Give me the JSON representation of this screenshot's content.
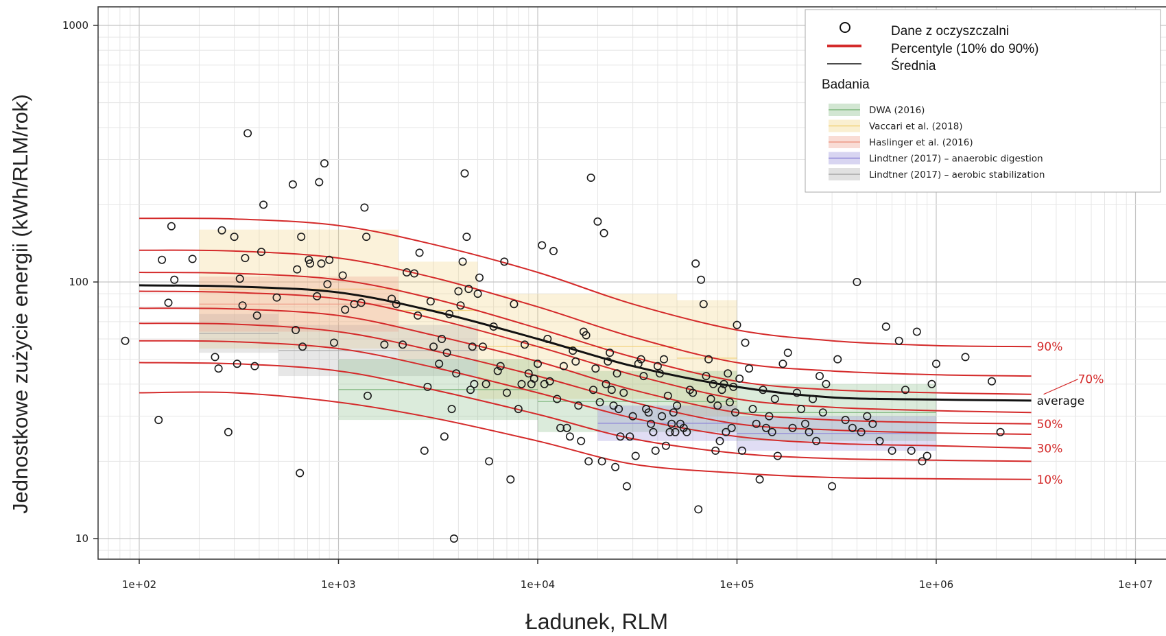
{
  "chart_data": {
    "type": "scatter",
    "xlabel": "Ładunek, RLM",
    "ylabel": "Jednostkowe zużycie energii (kWh/RLM/rok)",
    "xscale": "log",
    "yscale": "log",
    "xlim": [
      60,
      12000000
    ],
    "ylim": [
      8,
      1200
    ],
    "x_ticks": [
      100,
      1000,
      10000,
      100000,
      1000000,
      10000000
    ],
    "x_tick_labels": [
      "1e+02",
      "1e+03",
      "1e+04",
      "1e+05",
      "1e+06",
      "1e+07"
    ],
    "y_ticks": [
      10,
      100,
      1000
    ],
    "y_tick_labels": [
      "10",
      "100",
      "1000"
    ],
    "grid": true,
    "legend_position": "top-right",
    "legend": {
      "data_label": "Dane z oczyszczalni",
      "percentile_label": "Percentyle (10% do 90%)",
      "mean_label": "Średnia",
      "studies_title": "Badania",
      "studies": [
        {
          "name": "DWA (2016)",
          "color": "#7fb77e"
        },
        {
          "name": "Vaccari et al. (2018)",
          "color": "#f2d27a"
        },
        {
          "name": "Haslinger et al. (2016)",
          "color": "#ee9a86"
        },
        {
          "name": "Lindtner (2017) – anaerobic digestion",
          "color": "#8e86d8"
        },
        {
          "name": "Lindtner (2017) – aerobic stabilization",
          "color": "#a8a8a8"
        }
      ]
    },
    "curve_x": [
      100,
      300,
      1000,
      3000,
      10000,
      30000,
      100000,
      300000,
      1000000,
      3000000
    ],
    "percentile_series": [
      {
        "label": "10%",
        "values": [
          37,
          37,
          34,
          29.5,
          24,
          19.5,
          18,
          17.3,
          17.1,
          17
        ]
      },
      {
        "label": "",
        "values": [
          48.5,
          48,
          45,
          38,
          30.5,
          24.5,
          21.5,
          20.5,
          20.2,
          20
        ]
      },
      {
        "label": "30%",
        "values": [
          59,
          58.5,
          55,
          46.5,
          37,
          29.5,
          25,
          23.5,
          23,
          22.5
        ]
      },
      {
        "label": "",
        "values": [
          69,
          68.5,
          64,
          54,
          43,
          34,
          28,
          26.5,
          25.8,
          25.5
        ]
      },
      {
        "label": "50%",
        "values": [
          79,
          78.5,
          74,
          62,
          49,
          38,
          31,
          29,
          28.3,
          28
        ]
      },
      {
        "label": "",
        "values": [
          92,
          91,
          86,
          72,
          56,
          43.5,
          35,
          32.5,
          31.5,
          31
        ]
      },
      {
        "label": "70%",
        "values": [
          109,
          108,
          102,
          86,
          66,
          51,
          41,
          38,
          37,
          36.5
        ]
      },
      {
        "label": "",
        "values": [
          133,
          132,
          124,
          104,
          80,
          61,
          48.5,
          45,
          43.5,
          43
        ]
      },
      {
        "label": "90%",
        "values": [
          177,
          176,
          166,
          140,
          109,
          82,
          65,
          59,
          56.5,
          56
        ]
      }
    ],
    "average_series": {
      "label": "average",
      "values": [
        97,
        96,
        91,
        77,
        60,
        47,
        39,
        35.5,
        34.8,
        34.5
      ]
    },
    "study_boxes": [
      {
        "study": "Vaccari et al. (2018)",
        "x_range": [
          200,
          2000
        ],
        "y_range": [
          55,
          160
        ]
      },
      {
        "study": "Vaccari et al. (2018)",
        "x_range": [
          2000,
          5000
        ],
        "y_range": [
          50,
          120
        ]
      },
      {
        "study": "Vaccari et al. (2018)",
        "x_range": [
          5000,
          50000
        ],
        "y_range": [
          35,
          90
        ]
      },
      {
        "study": "Vaccari et al. (2018)",
        "x_range": [
          50000,
          100000
        ],
        "y_range": [
          30,
          85
        ]
      },
      {
        "study": "Lindtner (2017) – aerobic stabilization",
        "x_range": [
          200,
          500
        ],
        "y_range": [
          53,
          75
        ]
      },
      {
        "study": "Lindtner (2017) – aerobic stabilization",
        "x_range": [
          500,
          5000
        ],
        "y_range": [
          43,
          68
        ]
      },
      {
        "study": "Haslinger et al. (2016)",
        "x_range": [
          200,
          2000
        ],
        "y_range": [
          64,
          105
        ]
      },
      {
        "study": "DWA (2016)",
        "x_range": [
          1000,
          10000
        ],
        "y_range": [
          29,
          50
        ]
      },
      {
        "study": "DWA (2016)",
        "x_range": [
          10000,
          100000
        ],
        "y_range": [
          26,
          45
        ]
      },
      {
        "study": "DWA (2016)",
        "x_range": [
          100000,
          1000000
        ],
        "y_range": [
          24,
          40
        ]
      },
      {
        "study": "Lindtner (2017) – anaerobic digestion",
        "x_range": [
          20000,
          100000
        ],
        "y_range": [
          24,
          33
        ]
      },
      {
        "study": "Lindtner (2017) – anaerobic digestion",
        "x_range": [
          100000,
          1000000
        ],
        "y_range": [
          22,
          30
        ]
      }
    ],
    "points": [
      [
        85,
        59
      ],
      [
        125,
        29
      ],
      [
        130,
        122
      ],
      [
        140,
        83
      ],
      [
        145,
        165
      ],
      [
        150,
        102
      ],
      [
        185,
        123
      ],
      [
        240,
        51
      ],
      [
        250,
        46
      ],
      [
        260,
        159
      ],
      [
        280,
        26
      ],
      [
        300,
        150
      ],
      [
        310,
        48
      ],
      [
        320,
        103
      ],
      [
        330,
        81
      ],
      [
        340,
        124
      ],
      [
        350,
        380
      ],
      [
        380,
        47
      ],
      [
        390,
        74
      ],
      [
        420,
        200
      ],
      [
        410,
        131
      ],
      [
        490,
        87
      ],
      [
        590,
        240
      ],
      [
        610,
        65
      ],
      [
        620,
        112
      ],
      [
        640,
        18
      ],
      [
        650,
        150
      ],
      [
        660,
        56
      ],
      [
        710,
        122
      ],
      [
        720,
        118
      ],
      [
        780,
        88
      ],
      [
        800,
        245
      ],
      [
        820,
        118
      ],
      [
        850,
        290
      ],
      [
        880,
        98
      ],
      [
        900,
        122
      ],
      [
        950,
        58
      ],
      [
        1050,
        106
      ],
      [
        1080,
        78
      ],
      [
        1200,
        82
      ],
      [
        1300,
        83
      ],
      [
        1350,
        195
      ],
      [
        1380,
        150
      ],
      [
        1400,
        36
      ],
      [
        1700,
        57
      ],
      [
        1850,
        86
      ],
      [
        1950,
        82
      ],
      [
        2100,
        57
      ],
      [
        2200,
        109
      ],
      [
        2400,
        108
      ],
      [
        2500,
        74
      ],
      [
        2550,
        130
      ],
      [
        2700,
        22
      ],
      [
        2800,
        39
      ],
      [
        2900,
        84
      ],
      [
        3000,
        56
      ],
      [
        3200,
        48
      ],
      [
        3300,
        60
      ],
      [
        3400,
        25
      ],
      [
        3500,
        53
      ],
      [
        3600,
        75
      ],
      [
        3700,
        32
      ],
      [
        3800,
        10
      ],
      [
        3900,
        44
      ],
      [
        4000,
        92
      ],
      [
        4100,
        81
      ],
      [
        4200,
        120
      ],
      [
        4300,
        265
      ],
      [
        4400,
        150
      ],
      [
        4500,
        94
      ],
      [
        4600,
        38
      ],
      [
        4700,
        56
      ],
      [
        4800,
        40
      ],
      [
        5000,
        90
      ],
      [
        5100,
        104
      ],
      [
        5300,
        56
      ],
      [
        5500,
        40
      ],
      [
        5700,
        20
      ],
      [
        6000,
        67
      ],
      [
        6300,
        45
      ],
      [
        6500,
        47
      ],
      [
        6800,
        120
      ],
      [
        7000,
        37
      ],
      [
        7300,
        17
      ],
      [
        7600,
        82
      ],
      [
        8000,
        32
      ],
      [
        8300,
        40
      ],
      [
        8600,
        57
      ],
      [
        9000,
        44
      ],
      [
        9300,
        40
      ],
      [
        9600,
        42
      ],
      [
        10000,
        48
      ],
      [
        10500,
        139
      ],
      [
        10800,
        40
      ],
      [
        11200,
        60
      ],
      [
        11500,
        41
      ],
      [
        12000,
        132
      ],
      [
        12500,
        35
      ],
      [
        13000,
        27
      ],
      [
        13500,
        47
      ],
      [
        14000,
        27
      ],
      [
        14500,
        25
      ],
      [
        15000,
        54
      ],
      [
        15500,
        49
      ],
      [
        16000,
        33
      ],
      [
        16500,
        24
      ],
      [
        17000,
        64
      ],
      [
        17500,
        62
      ],
      [
        18000,
        20
      ],
      [
        18500,
        255
      ],
      [
        19000,
        38
      ],
      [
        19500,
        46
      ],
      [
        20000,
        172
      ],
      [
        20500,
        34
      ],
      [
        21000,
        20
      ],
      [
        21500,
        155
      ],
      [
        22000,
        40
      ],
      [
        22500,
        49
      ],
      [
        23000,
        53
      ],
      [
        23500,
        38
      ],
      [
        24000,
        33
      ],
      [
        24500,
        19
      ],
      [
        25000,
        44
      ],
      [
        25500,
        32
      ],
      [
        26000,
        25
      ],
      [
        27000,
        37
      ],
      [
        28000,
        16
      ],
      [
        29000,
        25
      ],
      [
        30000,
        30
      ],
      [
        31000,
        21
      ],
      [
        32000,
        48
      ],
      [
        33000,
        50
      ],
      [
        34000,
        43
      ],
      [
        35000,
        32
      ],
      [
        36000,
        31
      ],
      [
        37000,
        28
      ],
      [
        38000,
        26
      ],
      [
        39000,
        22
      ],
      [
        40000,
        47
      ],
      [
        41000,
        44
      ],
      [
        42000,
        30
      ],
      [
        43000,
        50
      ],
      [
        44000,
        23
      ],
      [
        45000,
        36
      ],
      [
        46000,
        26
      ],
      [
        47000,
        28
      ],
      [
        48000,
        31
      ],
      [
        49000,
        26
      ],
      [
        50000,
        33
      ],
      [
        52000,
        28
      ],
      [
        54000,
        27
      ],
      [
        56000,
        26
      ],
      [
        58000,
        38
      ],
      [
        60000,
        37
      ],
      [
        62000,
        118
      ],
      [
        64000,
        13
      ],
      [
        66000,
        102
      ],
      [
        68000,
        82
      ],
      [
        70000,
        43
      ],
      [
        72000,
        50
      ],
      [
        74000,
        35
      ],
      [
        76000,
        40
      ],
      [
        78000,
        22
      ],
      [
        80000,
        33
      ],
      [
        82000,
        24
      ],
      [
        84000,
        38
      ],
      [
        86000,
        40
      ],
      [
        88000,
        26
      ],
      [
        90000,
        44
      ],
      [
        92000,
        34
      ],
      [
        94000,
        27
      ],
      [
        96000,
        39
      ],
      [
        98000,
        31
      ],
      [
        100000,
        68
      ],
      [
        103000,
        42
      ],
      [
        106000,
        22
      ],
      [
        110000,
        58
      ],
      [
        115000,
        46
      ],
      [
        120000,
        32
      ],
      [
        125000,
        28
      ],
      [
        130000,
        17
      ],
      [
        135000,
        38
      ],
      [
        140000,
        27
      ],
      [
        145000,
        30
      ],
      [
        150000,
        26
      ],
      [
        155000,
        35
      ],
      [
        160000,
        21
      ],
      [
        170000,
        48
      ],
      [
        180000,
        53
      ],
      [
        190000,
        27
      ],
      [
        200000,
        37
      ],
      [
        210000,
        32
      ],
      [
        220000,
        28
      ],
      [
        230000,
        26
      ],
      [
        240000,
        35
      ],
      [
        250000,
        24
      ],
      [
        260000,
        43
      ],
      [
        270000,
        31
      ],
      [
        280000,
        40
      ],
      [
        300000,
        16
      ],
      [
        320000,
        50
      ],
      [
        350000,
        29
      ],
      [
        380000,
        27
      ],
      [
        400000,
        100
      ],
      [
        420000,
        26
      ],
      [
        450000,
        30
      ],
      [
        480000,
        28
      ],
      [
        520000,
        24
      ],
      [
        560000,
        67
      ],
      [
        600000,
        22
      ],
      [
        650000,
        59
      ],
      [
        700000,
        38
      ],
      [
        750000,
        22
      ],
      [
        800000,
        64
      ],
      [
        850000,
        20
      ],
      [
        900000,
        21
      ],
      [
        950000,
        40
      ],
      [
        1000000,
        48
      ],
      [
        1400000,
        51
      ],
      [
        1900000,
        41
      ],
      [
        2100000,
        26
      ]
    ]
  }
}
